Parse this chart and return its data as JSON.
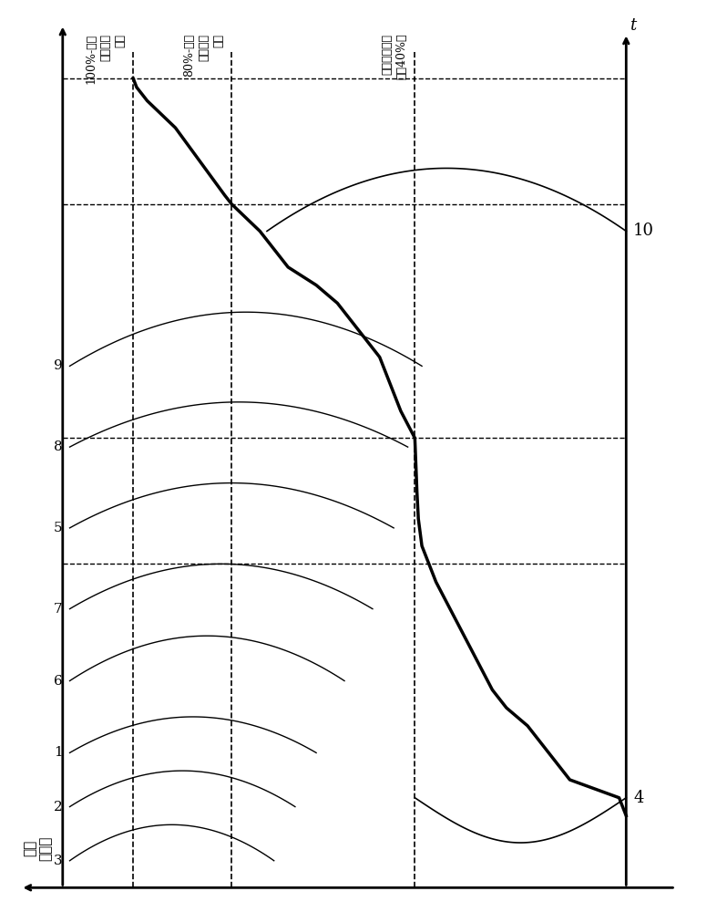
{
  "title": "",
  "bg_color": "#ffffff",
  "label_100": "100%-单位\n摩擦功的\n界限",
  "label_80": "80%-单位\n摩擦功的\n界限",
  "label_fatigue": "疲劳强度极限\n（约40%）",
  "ylabel": "单位\n摩擦功",
  "xlabel": "t",
  "label_10": "10",
  "label_4": "4",
  "numbers_left": [
    "9",
    "8",
    "5",
    "7",
    "6",
    "1",
    "2",
    "3"
  ],
  "line_color": "#000000",
  "thick_line_color": "#000000",
  "dashed_color": "#000000",
  "grid_color": "#888888"
}
